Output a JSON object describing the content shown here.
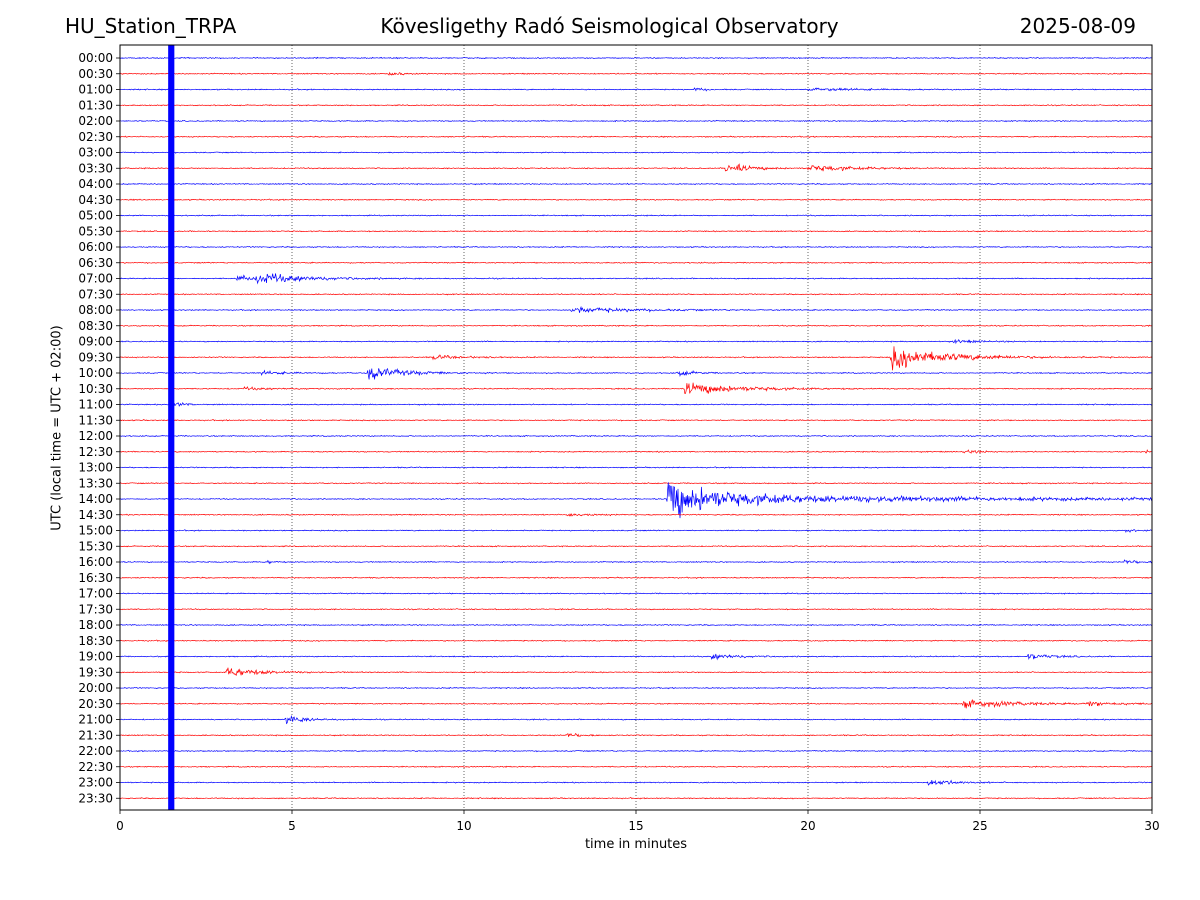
{
  "header": {
    "station": "HU_Station_TRPA",
    "title": "Kövesligethy Radó Seismological Observatory",
    "date": "2025-08-09"
  },
  "chart_data": {
    "type": "line",
    "title": "Kövesligethy Radó Seismological Observatory",
    "xlabel": "time in minutes",
    "ylabel": "UTC (local time = UTC + 02:00)",
    "xlim": [
      0,
      30
    ],
    "x_ticks": [
      0,
      5,
      10,
      15,
      20,
      25,
      30
    ],
    "grid": "vertical dotted lines at 5-minute ticks",
    "row_labels": [
      "00:00",
      "00:30",
      "01:00",
      "01:30",
      "02:00",
      "02:30",
      "03:00",
      "03:30",
      "04:00",
      "04:30",
      "05:00",
      "05:30",
      "06:00",
      "06:30",
      "07:00",
      "07:30",
      "08:00",
      "08:30",
      "09:00",
      "09:30",
      "10:00",
      "10:30",
      "11:00",
      "11:30",
      "12:00",
      "12:30",
      "13:00",
      "13:30",
      "14:00",
      "14:30",
      "15:00",
      "15:30",
      "16:00",
      "16:30",
      "17:00",
      "17:30",
      "18:00",
      "18:30",
      "19:00",
      "19:30",
      "20:00",
      "20:30",
      "21:00",
      "21:30",
      "22:00",
      "22:30",
      "23:00",
      "23:30"
    ],
    "colors": [
      "#0000ff",
      "#ff0000"
    ],
    "saturated_band": {
      "start_min": 1.4,
      "end_min": 1.58,
      "color": "#0000ff"
    },
    "events": [
      {
        "row": 1,
        "start_min": 7.8,
        "amp": 0.3,
        "dur": 0.5
      },
      {
        "row": 2,
        "start_min": 16.7,
        "amp": 0.4,
        "dur": 0.3
      },
      {
        "row": 2,
        "start_min": 20.0,
        "amp": 0.3,
        "dur": 1.8
      },
      {
        "row": 7,
        "start_min": 17.6,
        "amp": 1.2,
        "dur": 0.8
      },
      {
        "row": 7,
        "start_min": 20.0,
        "amp": 0.6,
        "dur": 1.8
      },
      {
        "row": 14,
        "start_min": 3.4,
        "amp": 0.7,
        "dur": 1.0
      },
      {
        "row": 14,
        "start_min": 4.0,
        "amp": 0.9,
        "dur": 1.8
      },
      {
        "row": 16,
        "start_min": 13.1,
        "amp": 0.6,
        "dur": 2.2
      },
      {
        "row": 18,
        "start_min": 24.2,
        "amp": 0.3,
        "dur": 1.0
      },
      {
        "row": 19,
        "start_min": 9.1,
        "amp": 0.4,
        "dur": 1.2
      },
      {
        "row": 19,
        "start_min": 22.4,
        "amp": 2.3,
        "dur": 2.0
      },
      {
        "row": 20,
        "start_min": 4.1,
        "amp": 0.4,
        "dur": 0.8
      },
      {
        "row": 20,
        "start_min": 7.2,
        "amp": 1.5,
        "dur": 1.2
      },
      {
        "row": 20,
        "start_min": 16.2,
        "amp": 0.6,
        "dur": 0.6
      },
      {
        "row": 21,
        "start_min": 16.4,
        "amp": 1.4,
        "dur": 1.8
      },
      {
        "row": 21,
        "start_min": 3.6,
        "amp": 0.25,
        "dur": 1.0
      },
      {
        "row": 22,
        "start_min": 1.55,
        "amp": 0.6,
        "dur": 0.4
      },
      {
        "row": 25,
        "start_min": 24.5,
        "amp": 0.4,
        "dur": 0.6
      },
      {
        "row": 25,
        "start_min": 29.8,
        "amp": 0.4,
        "dur": 0.2
      },
      {
        "row": 28,
        "start_min": 15.9,
        "amp": 6.0,
        "dur": 1.0
      },
      {
        "row": 28,
        "start_min": 16.8,
        "amp": 1.0,
        "dur": 10.0
      },
      {
        "row": 29,
        "start_min": 13.0,
        "amp": 0.3,
        "dur": 0.8
      },
      {
        "row": 30,
        "start_min": 29.2,
        "amp": 0.4,
        "dur": 0.3
      },
      {
        "row": 32,
        "start_min": 4.3,
        "amp": 0.3,
        "dur": 0.3
      },
      {
        "row": 32,
        "start_min": 29.2,
        "amp": 0.4,
        "dur": 0.6
      },
      {
        "row": 38,
        "start_min": 17.2,
        "amp": 0.6,
        "dur": 0.9
      },
      {
        "row": 38,
        "start_min": 26.4,
        "amp": 0.6,
        "dur": 0.8
      },
      {
        "row": 39,
        "start_min": 3.1,
        "amp": 1.0,
        "dur": 1.2
      },
      {
        "row": 41,
        "start_min": 24.5,
        "amp": 0.8,
        "dur": 2.0
      },
      {
        "row": 41,
        "start_min": 28.1,
        "amp": 0.5,
        "dur": 0.9
      },
      {
        "row": 42,
        "start_min": 4.8,
        "amp": 0.8,
        "dur": 0.8
      },
      {
        "row": 43,
        "start_min": 13.0,
        "amp": 0.5,
        "dur": 0.5
      },
      {
        "row": 46,
        "start_min": 23.5,
        "amp": 0.8,
        "dur": 0.8
      }
    ]
  }
}
